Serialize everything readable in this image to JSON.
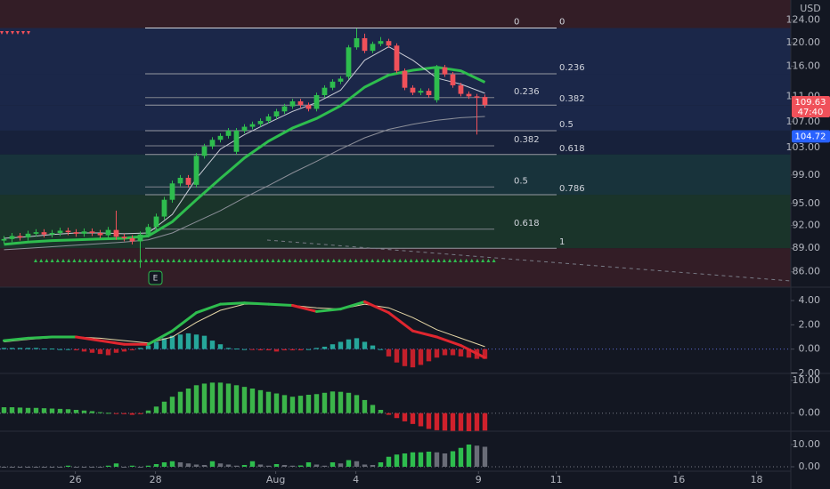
{
  "chart_data": [
    {
      "type": "candlestick",
      "currency": "USD",
      "event_marker": "E",
      "xlim": [
        0,
        98.67
      ],
      "xticks": [
        {
          "value": 9.4,
          "label": "26"
        },
        {
          "value": 19.4,
          "label": "28"
        },
        {
          "value": 34.4,
          "label": "Aug"
        },
        {
          "value": 44.4,
          "label": "4"
        },
        {
          "value": 59.7,
          "label": "9"
        },
        {
          "value": 69.4,
          "label": "11"
        },
        {
          "value": 84.7,
          "label": "16"
        },
        {
          "value": 94.4,
          "label": "18"
        }
      ],
      "ylim": [
        84.1,
        127.7
      ],
      "log_scale": true,
      "yticks": [
        {
          "value": 124,
          "label": "124.00"
        },
        {
          "value": 120,
          "label": "120.00"
        },
        {
          "value": 116,
          "label": "116.00"
        },
        {
          "value": 111,
          "label": "111.00"
        },
        {
          "value": 107,
          "label": "107.00"
        },
        {
          "value": 103,
          "label": "103.00"
        },
        {
          "value": 99,
          "label": "99.00"
        },
        {
          "value": 95,
          "label": "95.00"
        },
        {
          "value": 92,
          "label": "92.00"
        },
        {
          "value": 89,
          "label": "89.00"
        },
        {
          "value": 86,
          "label": "86.00"
        }
      ],
      "up_color": "#2ebd4e",
      "down_color": "#f0515a",
      "open": [
        90.0,
        90.2,
        90.6,
        90.4,
        90.9,
        91.1,
        90.8,
        91.0,
        91.3,
        91.1,
        90.9,
        91.2,
        91.0,
        90.7,
        91.4,
        90.5,
        90.3,
        89.9,
        90.8,
        91.8,
        93.2,
        95.5,
        97.8,
        98.6,
        97.6,
        101.8,
        103.2,
        104.2,
        104.8,
        102.4,
        105.6,
        106.2,
        106.6,
        107.1,
        107.8,
        108.6,
        109.4,
        110.2,
        109.6,
        109.0,
        111.2,
        112.4,
        113.4,
        114.2,
        119.2,
        120.8,
        118.6,
        119.8,
        120.3,
        119.5,
        115.2,
        112.4,
        111.6,
        111.9,
        110.4,
        115.8,
        114.6,
        112.8,
        111.4,
        111.0,
        110.9
      ],
      "high": [
        90.6,
        91.0,
        91.0,
        91.3,
        91.5,
        91.5,
        91.4,
        91.7,
        91.7,
        91.5,
        91.6,
        91.6,
        91.4,
        91.8,
        94.0,
        90.9,
        90.7,
        91.2,
        92.2,
        93.6,
        95.9,
        98.2,
        99.0,
        99.0,
        102.2,
        103.6,
        104.6,
        105.2,
        106.0,
        106.0,
        106.6,
        107.0,
        107.5,
        108.2,
        109.0,
        109.8,
        110.6,
        110.6,
        110.0,
        111.6,
        112.8,
        113.8,
        114.3,
        119.6,
        122.5,
        121.6,
        120.2,
        121.0,
        120.7,
        119.9,
        115.6,
        112.8,
        112.3,
        112.3,
        116.2,
        116.2,
        115.0,
        113.2,
        111.8,
        111.4,
        111.3
      ],
      "low": [
        89.6,
        89.8,
        90.0,
        90.0,
        90.5,
        90.4,
        90.4,
        90.6,
        90.7,
        90.5,
        90.5,
        90.6,
        90.3,
        90.3,
        90.1,
        89.9,
        89.5,
        86.5,
        90.4,
        91.4,
        92.8,
        95.1,
        97.4,
        97.2,
        97.2,
        101.4,
        102.8,
        103.8,
        104.4,
        102.0,
        105.2,
        105.8,
        106.2,
        106.7,
        107.4,
        108.2,
        109.0,
        109.2,
        108.6,
        108.6,
        110.8,
        112.0,
        113.0,
        113.8,
        118.8,
        118.2,
        118.2,
        119.4,
        119.1,
        114.8,
        112.0,
        111.2,
        111.2,
        110.8,
        110.0,
        114.2,
        112.4,
        111.0,
        110.6,
        105.0,
        109.2
      ],
      "close": [
        90.2,
        90.6,
        90.4,
        90.9,
        91.1,
        90.8,
        91.0,
        91.3,
        91.1,
        90.9,
        91.2,
        91.0,
        90.7,
        91.4,
        90.5,
        90.3,
        89.9,
        90.8,
        91.8,
        93.2,
        95.5,
        97.8,
        98.6,
        97.6,
        101.8,
        103.2,
        104.2,
        104.8,
        105.6,
        105.6,
        106.2,
        106.6,
        107.1,
        107.8,
        108.6,
        109.4,
        110.2,
        109.6,
        109.0,
        111.2,
        112.4,
        113.4,
        113.9,
        119.2,
        120.8,
        118.6,
        119.8,
        120.3,
        119.5,
        115.2,
        112.4,
        111.6,
        111.9,
        111.2,
        115.8,
        114.6,
        112.8,
        111.4,
        111.0,
        110.8,
        109.63
      ],
      "overlays": [
        {
          "color": "#8c8f99",
          "width": 1,
          "x": [
            0,
            3,
            6,
            9,
            12,
            15,
            18,
            21,
            24,
            27,
            30,
            33,
            36,
            39,
            42,
            45,
            48,
            51,
            54,
            57,
            60
          ],
          "values": [
            88.8,
            89.0,
            89.2,
            89.4,
            89.6,
            89.8,
            90.1,
            91.0,
            92.5,
            94.0,
            95.8,
            97.5,
            99.3,
            101.0,
            102.8,
            104.5,
            105.8,
            106.6,
            107.2,
            107.6,
            107.8
          ]
        },
        {
          "color": "#2ebd4e",
          "width": 3,
          "x": [
            0,
            3,
            6,
            9,
            12,
            15,
            18,
            21,
            24,
            27,
            30,
            33,
            36,
            39,
            42,
            45,
            48,
            51,
            54,
            57,
            60
          ],
          "values": [
            89.5,
            89.8,
            90.0,
            90.1,
            90.2,
            90.3,
            90.6,
            92.5,
            95.5,
            98.5,
            101.5,
            104.0,
            106.0,
            107.5,
            109.5,
            112.5,
            114.5,
            115.3,
            115.8,
            115.2,
            113.3
          ]
        },
        {
          "color": "#c9ccd6",
          "width": 1,
          "x": [
            0,
            3,
            6,
            9,
            12,
            15,
            18,
            21,
            24,
            27,
            30,
            33,
            36,
            39,
            42,
            45,
            48,
            51,
            54,
            57,
            60
          ],
          "values": [
            90.3,
            90.5,
            90.8,
            91.0,
            91.0,
            90.9,
            91.0,
            93.5,
            98.5,
            102.8,
            105.0,
            106.8,
            108.6,
            110.0,
            112.0,
            117.0,
            119.3,
            117.0,
            114.0,
            113.0,
            111.5
          ]
        }
      ],
      "fib_sets": [
        {
          "color": "#9598a1",
          "levels": [
            {
              "label": "0",
              "value": 122.6
            },
            {
              "label": "0.236",
              "value": 114.7
            },
            {
              "label": "0.382",
              "value": 109.6
            },
            {
              "label": "0.5",
              "value": 105.6
            },
            {
              "label": "0.618",
              "value": 102.0
            },
            {
              "label": "0.786",
              "value": 96.2
            },
            {
              "label": "1",
              "value": 89.0
            }
          ]
        },
        {
          "color": "#7f838d",
          "levels": [
            {
              "label": "0",
              "value": 122.6
            },
            {
              "label": "0.236",
              "value": 110.8
            },
            {
              "label": "0.382",
              "value": 103.3
            },
            {
              "label": "0.5",
              "value": 97.3
            },
            {
              "label": "0.618",
              "value": 91.5
            }
          ]
        }
      ],
      "band_colors": [
        "#3a1f27",
        "#1d2a50",
        "#1d2a50",
        "#1d2a50",
        "#19233f",
        "#1a3840",
        "#1c3a2c",
        "#3a1f27"
      ],
      "last_price": {
        "value": 109.63,
        "countdown": "47:40",
        "color": "#f0515a"
      },
      "marker_price": {
        "value": 104.72,
        "color": "#2962ff"
      }
    },
    {
      "type": "macd",
      "ylim": [
        -2.0,
        5.1
      ],
      "yticks": [
        {
          "value": 4,
          "label": "4.00"
        },
        {
          "value": 2,
          "label": "2.00"
        },
        {
          "value": 0,
          "label": "0.00"
        },
        {
          "value": -2,
          "label": "−2.00"
        }
      ],
      "x": [
        0,
        3,
        6,
        9,
        12,
        15,
        18,
        21,
        24,
        27,
        30,
        33,
        36,
        39,
        42,
        45,
        48,
        51,
        54,
        57,
        60
      ],
      "line": [
        0.7,
        0.9,
        1.0,
        1.0,
        0.7,
        0.4,
        0.4,
        1.5,
        3.0,
        3.7,
        3.8,
        3.7,
        3.6,
        3.1,
        3.3,
        3.9,
        3.0,
        1.5,
        1.0,
        0.3,
        -0.7
      ],
      "signal": [
        0.6,
        0.8,
        0.95,
        1.0,
        0.9,
        0.7,
        0.5,
        1.0,
        2.2,
        3.2,
        3.7,
        3.7,
        3.6,
        3.4,
        3.3,
        3.7,
        3.4,
        2.6,
        1.6,
        0.9,
        0.2
      ],
      "up_color": "#2ebd4e",
      "down_color": "#e0262f",
      "signal_color": "#e8d9a8",
      "histogram": [
        0.1,
        0.1,
        0.1,
        0.1,
        0.1,
        0.05,
        0.05,
        0,
        0,
        -0.1,
        -0.2,
        -0.3,
        -0.4,
        -0.5,
        -0.3,
        -0.2,
        -0.1,
        0.1,
        0.3,
        0.6,
        0.9,
        1.1,
        1.2,
        1.3,
        1.2,
        1.1,
        0.7,
        0.4,
        0.1,
        0.05,
        0,
        -0.05,
        -0.1,
        -0.1,
        -0.2,
        -0.1,
        -0.1,
        -0.1,
        0,
        0.1,
        0.2,
        0.4,
        0.6,
        0.8,
        0.9,
        0.6,
        0.3,
        0,
        -0.6,
        -1.1,
        -1.4,
        -1.5,
        -1.3,
        -1.0,
        -0.7,
        -0.5,
        -0.5,
        -0.6,
        -0.7,
        -0.8,
        -0.8
      ],
      "hist_up_color": "#26a69a",
      "hist_down_color": "#c3202b"
    },
    {
      "type": "bar",
      "ylim": [
        -5.5,
        12.1
      ],
      "yticks": [
        {
          "value": 10,
          "label": "10.00"
        },
        {
          "value": 0,
          "label": "0.00"
        }
      ],
      "values": [
        1.8,
        1.8,
        1.7,
        1.6,
        1.6,
        1.5,
        1.4,
        1.3,
        1.2,
        1.0,
        0.8,
        0.6,
        0.3,
        0.1,
        -0.2,
        -0.3,
        -0.5,
        -0.3,
        0.8,
        2.0,
        3.5,
        5.0,
        6.5,
        7.5,
        8.5,
        9.0,
        9.3,
        9.3,
        9.0,
        8.5,
        8.0,
        7.5,
        7.0,
        6.5,
        6.0,
        5.5,
        5.0,
        5.3,
        5.6,
        5.8,
        6.2,
        6.6,
        6.5,
        6.2,
        5.5,
        4.0,
        2.5,
        1.0,
        -0.5,
        -1.5,
        -2.5,
        -3.3,
        -4.0,
        -4.8,
        -5.2,
        -5.3,
        -5.4,
        -5.4,
        -5.5,
        -5.4,
        -5.3
      ],
      "up_color": "#3bb54a",
      "down_color": "#d0212c"
    },
    {
      "type": "bar",
      "ylim": [
        -2,
        16
      ],
      "yticks": [
        {
          "value": 10,
          "label": "10.00"
        },
        {
          "value": 0,
          "label": "0.00"
        }
      ],
      "values": [
        0,
        0,
        0,
        0,
        0,
        0,
        0,
        0,
        0.5,
        0,
        0,
        0,
        0,
        0.5,
        1.5,
        0,
        0.5,
        0,
        0.5,
        1.2,
        2.0,
        2.5,
        2.0,
        1.5,
        1.0,
        0.8,
        2.5,
        1.5,
        1.0,
        0.5,
        0.8,
        2.5,
        1.0,
        0.5,
        1.2,
        0.8,
        0.5,
        0.6,
        2.0,
        1.0,
        0.5,
        2.0,
        1.5,
        3.0,
        2.5,
        1.0,
        0.8,
        2.0,
        4.5,
        5.5,
        6.0,
        6.5,
        6.5,
        6.8,
        6.5,
        6.0,
        7.0,
        8.5,
        10.0,
        9.5,
        9.0
      ],
      "up_color": "#2ebd4e",
      "down_color": "#6a6d78"
    }
  ]
}
